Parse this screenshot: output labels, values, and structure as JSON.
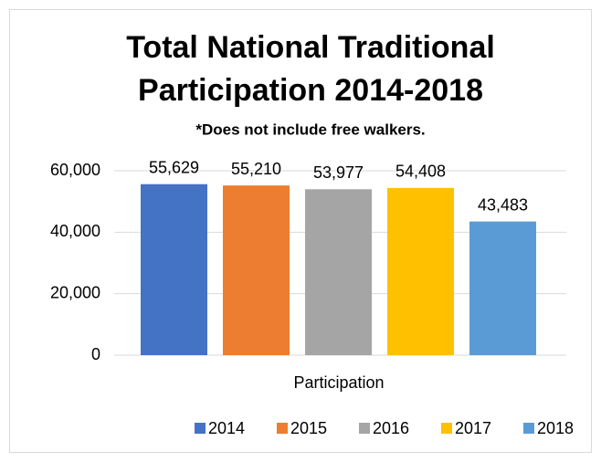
{
  "chart_data": {
    "type": "bar",
    "title": [
      "Total National Traditional",
      "Participation 2014-2018"
    ],
    "subtitle": "*Does not include free walkers.",
    "categories": [
      "Participation"
    ],
    "series": [
      {
        "name": "2014",
        "color": "#4472c4",
        "values": [
          55629
        ],
        "value_labels": [
          "55,629"
        ]
      },
      {
        "name": "2015",
        "color": "#ed7d31",
        "values": [
          55210
        ],
        "value_labels": [
          "55,210"
        ]
      },
      {
        "name": "2016",
        "color": "#a5a5a5",
        "values": [
          53977
        ],
        "value_labels": [
          "53,977"
        ]
      },
      {
        "name": "2017",
        "color": "#ffc000",
        "values": [
          54408
        ],
        "value_labels": [
          "54,408"
        ]
      },
      {
        "name": "2018",
        "color": "#5b9bd5",
        "values": [
          43483
        ],
        "value_labels": [
          "43,483"
        ]
      }
    ],
    "ylim": [
      0,
      60000
    ],
    "yticks": [
      0,
      {
        "value": 20000,
        "label": "20,000"
      },
      {
        "value": 40000,
        "label": "40,000"
      },
      {
        "value": 60000,
        "label": "60,000"
      }
    ],
    "grid": true,
    "legend": "bottom"
  }
}
